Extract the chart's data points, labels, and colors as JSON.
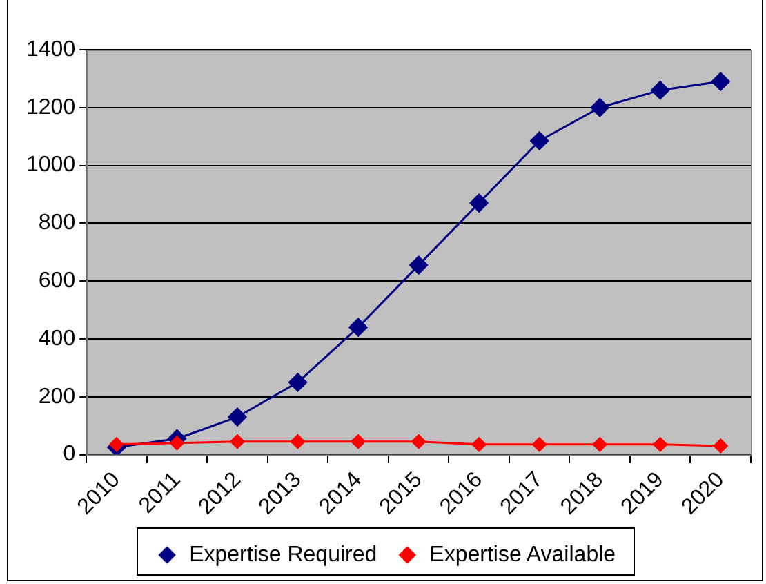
{
  "chart_data": {
    "type": "line",
    "categories": [
      "2010",
      "2011",
      "2012",
      "2013",
      "2014",
      "2015",
      "2016",
      "2017",
      "2018",
      "2019",
      "2020"
    ],
    "series": [
      {
        "name": "Expertise Required",
        "color": "#000080",
        "values": [
          25,
          55,
          130,
          250,
          440,
          655,
          870,
          1085,
          1200,
          1260,
          1290
        ]
      },
      {
        "name": "Expertise Available",
        "color": "#ff0000",
        "values": [
          35,
          40,
          45,
          45,
          45,
          45,
          35,
          35,
          35,
          35,
          30
        ]
      }
    ],
    "ylim": [
      0,
      1400
    ],
    "yticks": [
      0,
      200,
      400,
      600,
      800,
      1000,
      1200,
      1400
    ],
    "grid": "y",
    "legend": "bottom",
    "marker": "diamond",
    "line_style": "solid"
  }
}
